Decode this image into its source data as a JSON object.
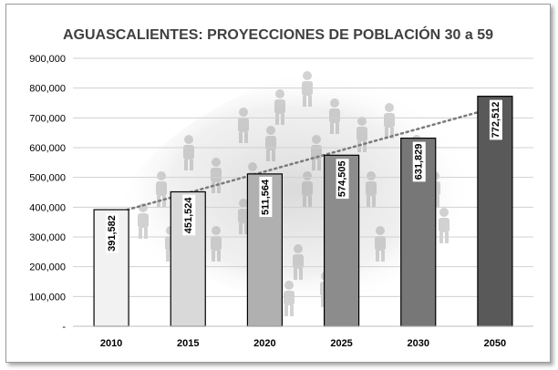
{
  "chart_data": {
    "type": "bar",
    "title": "AGUASCALIENTES: PROYECCIONES DE POBLACIÓN 30 a 59",
    "xlabel": "",
    "ylabel": "",
    "categories": [
      "2010",
      "2015",
      "2020",
      "2025",
      "2030",
      "2050"
    ],
    "values": [
      391582,
      451524,
      511564,
      574505,
      631829,
      772512
    ],
    "data_labels": [
      "391,582",
      "451,524",
      "511,564",
      "574,505",
      "631,829",
      "772,512"
    ],
    "bar_colors": [
      "#f2f2f2",
      "#d9d9d9",
      "#b0b0b0",
      "#8c8c8c",
      "#777777",
      "#595959"
    ],
    "ylim": [
      0,
      900000
    ],
    "yticks": [
      0,
      100000,
      200000,
      300000,
      400000,
      500000,
      600000,
      700000,
      800000,
      900000
    ],
    "ytick_labels": [
      "-",
      "100,000",
      "200,000",
      "300,000",
      "400,000",
      "500,000",
      "600,000",
      "700,000",
      "800,000",
      "900,000"
    ],
    "grid": true,
    "trendline": "dotted linear",
    "legend": "none",
    "background": "grayscale illustration of a crowd of people over a map outline"
  }
}
